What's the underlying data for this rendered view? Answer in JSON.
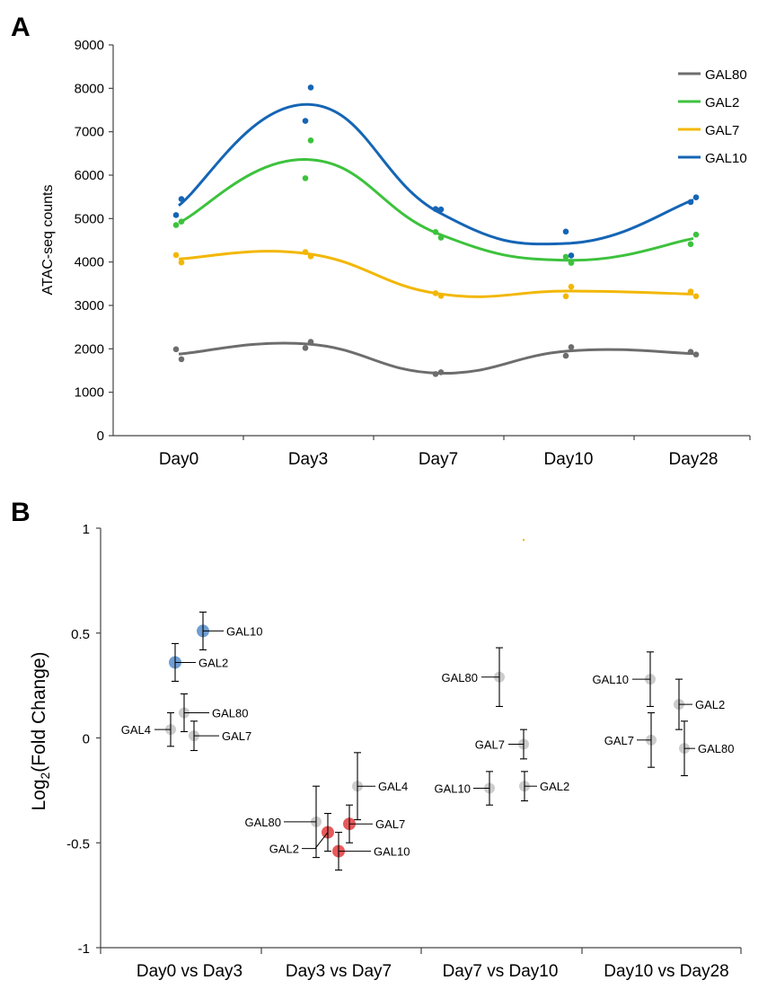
{
  "chart_data": [
    {
      "panel": "A",
      "type": "line",
      "ylabel": "ATAC-seq counts",
      "xlabel": "",
      "ylim": [
        0,
        9000
      ],
      "yticks": [
        0,
        1000,
        2000,
        3000,
        4000,
        5000,
        6000,
        7000,
        8000,
        9000
      ],
      "categories": [
        "Day0",
        "Day3",
        "Day7",
        "Day10",
        "Day28"
      ],
      "legend_position": "top-right",
      "series": [
        {
          "name": "GAL80",
          "color": "#6d6d6d",
          "fit": [
            1880,
            2110,
            1440,
            1950,
            1890
          ],
          "points": [
            [
              1990,
              1760
            ],
            [
              2020,
              2160
            ],
            [
              1420,
              1460
            ],
            [
              1840,
              2040
            ],
            [
              1930,
              1870
            ]
          ]
        },
        {
          "name": "GAL2",
          "color": "#3dc23d",
          "fit": [
            4900,
            6360,
            4650,
            4040,
            4540
          ],
          "points": [
            [
              4850,
              4930
            ],
            [
              5930,
              6800
            ],
            [
              4690,
              4560
            ],
            [
              4120,
              3980
            ],
            [
              4410,
              4630
            ]
          ]
        },
        {
          "name": "GAL7",
          "color": "#f2b705",
          "fit": [
            4070,
            4190,
            3270,
            3330,
            3260
          ],
          "points": [
            [
              4160,
              3990
            ],
            [
              4230,
              4130
            ],
            [
              3280,
              3220
            ],
            [
              3210,
              3430
            ],
            [
              3320,
              3210
            ]
          ]
        },
        {
          "name": "GAL10",
          "color": "#1565b5",
          "fit": [
            5300,
            7630,
            5150,
            4430,
            5430
          ],
          "points": [
            [
              5080,
              5450
            ],
            [
              7250,
              8020
            ],
            [
              5220,
              5210
            ],
            [
              4700,
              4150
            ],
            [
              5380,
              5490
            ]
          ]
        }
      ]
    },
    {
      "panel": "B",
      "type": "scatter",
      "ylabel_main": "Log",
      "ylabel_sub": "2",
      "ylabel_rest": "(Fold Change)",
      "ylim": [
        -1,
        1
      ],
      "yticks": [
        {
          "value": 1,
          "label": "1"
        },
        {
          "value": 0.5,
          "label": "0.5"
        },
        {
          "value": 0,
          "label": "0"
        },
        {
          "value": -0.5,
          "label": "-0.5"
        },
        {
          "value": -1,
          "label": "-1"
        }
      ],
      "categories": [
        "Day0 vs Day3",
        "Day3 vs Day7",
        "Day7 vs Day10",
        "Day10 vs Day28"
      ],
      "highlight_colors": {
        "up": "#6f9ed3",
        "down": "#e8595b",
        "ns": "#cccccc"
      },
      "groups": [
        {
          "comparison": "Day0 vs Day3",
          "points": [
            {
              "gene": "GAL10",
              "value": 0.51,
              "err": 0.09,
              "status": "up"
            },
            {
              "gene": "GAL2",
              "value": 0.36,
              "err": 0.09,
              "status": "up"
            },
            {
              "gene": "GAL80",
              "value": 0.12,
              "err": 0.09,
              "status": "ns"
            },
            {
              "gene": "GAL4",
              "value": 0.04,
              "err": 0.08,
              "status": "ns"
            },
            {
              "gene": "GAL7",
              "value": 0.01,
              "err": 0.07,
              "status": "ns"
            }
          ]
        },
        {
          "comparison": "Day3 vs Day7",
          "points": [
            {
              "gene": "GAL4",
              "value": -0.23,
              "err": 0.16,
              "status": "ns"
            },
            {
              "gene": "GAL80",
              "value": -0.4,
              "err": 0.17,
              "status": "ns"
            },
            {
              "gene": "GAL7",
              "value": -0.41,
              "err": 0.09,
              "status": "down"
            },
            {
              "gene": "GAL2",
              "value": -0.45,
              "err": 0.09,
              "status": "down"
            },
            {
              "gene": "GAL10",
              "value": -0.54,
              "err": 0.09,
              "status": "down"
            }
          ]
        },
        {
          "comparison": "Day7 vs Day10",
          "points": [
            {
              "gene": "GAL80",
              "value": 0.29,
              "err": 0.14,
              "status": "ns"
            },
            {
              "gene": "GAL7",
              "value": -0.03,
              "err": 0.07,
              "status": "ns"
            },
            {
              "gene": "GAL2",
              "value": -0.23,
              "err": 0.07,
              "status": "ns"
            },
            {
              "gene": "GAL10",
              "value": -0.24,
              "err": 0.08,
              "status": "ns"
            }
          ]
        },
        {
          "comparison": "Day10 vs Day28",
          "points": [
            {
              "gene": "GAL10",
              "value": 0.28,
              "err": 0.13,
              "status": "ns"
            },
            {
              "gene": "GAL2",
              "value": 0.16,
              "err": 0.12,
              "status": "ns"
            },
            {
              "gene": "GAL7",
              "value": -0.01,
              "err": 0.13,
              "status": "ns"
            },
            {
              "gene": "GAL80",
              "value": -0.05,
              "err": 0.13,
              "status": "ns"
            }
          ]
        }
      ]
    }
  ],
  "panels": {
    "a_label": "A",
    "b_label": "B"
  }
}
